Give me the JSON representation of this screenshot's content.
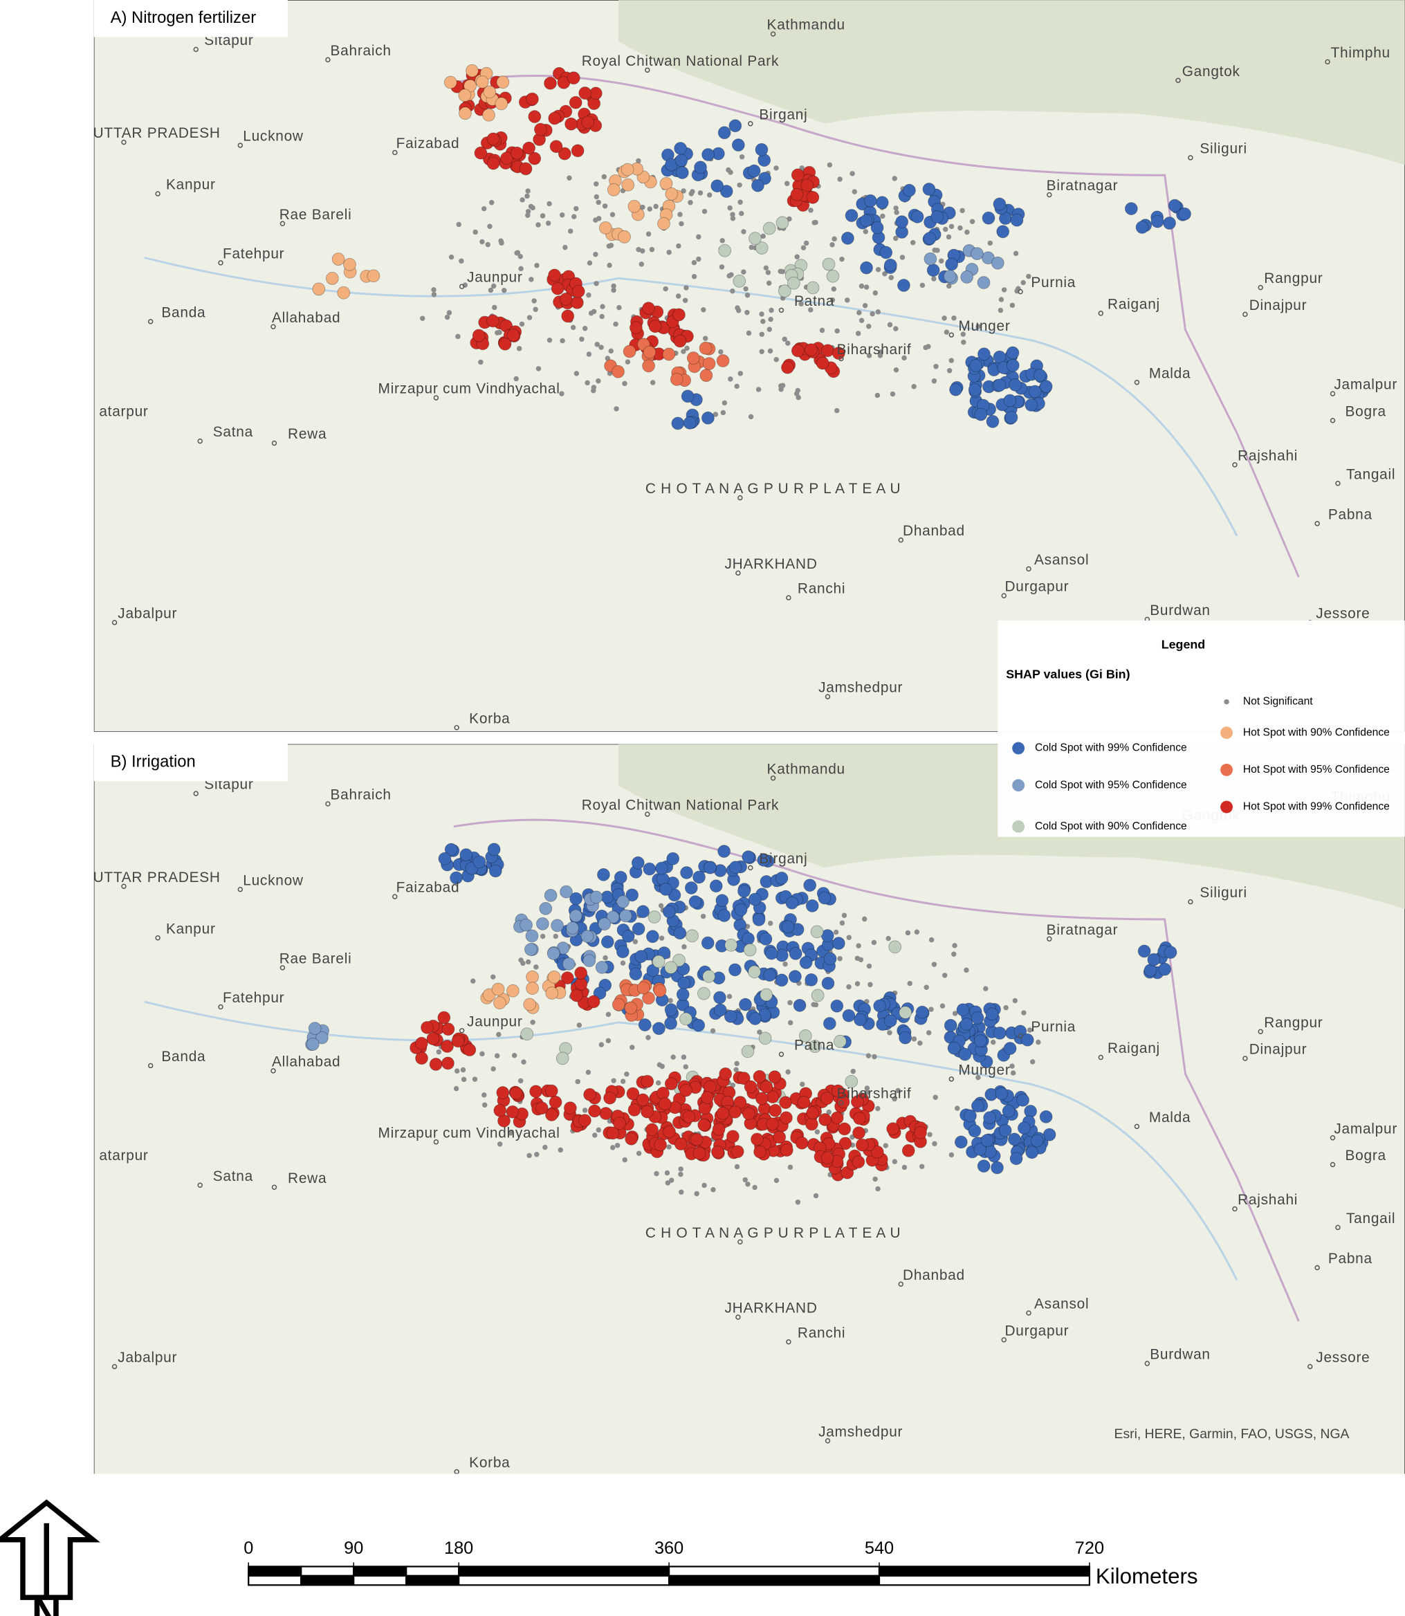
{
  "panels": [
    {
      "title": "A) Nitrogen fertilizer"
    },
    {
      "title": "B) Irrigation"
    }
  ],
  "places": [
    "Sitapur",
    "Bahraich",
    "Kathmandu",
    "Thimphu",
    "Gangtok",
    "UTTAR PRADESH",
    "Lucknow",
    "Faizabad",
    "Birganj",
    "Siliguri",
    "Kanpur",
    "Biratnagar",
    "Rae Bareli",
    "Fatehpur",
    "Jaunpur",
    "Purnia",
    "Rangpur",
    "Raiganj",
    "Dinajpur",
    "Banda",
    "Allahabad",
    "Patna",
    "Munger",
    "Biharsharif",
    "Mirzapur cum Vindhyachal",
    "Malda",
    "Jamalpur",
    "atarpur",
    "Bogra",
    "Satna",
    "Rewa",
    "Rajshahi",
    "Tangail",
    "C H O T A   N A G P U R   P L A T E A U",
    "Pabna",
    "Dhanbad",
    "JHARKHAND",
    "Asansol",
    "Ranchi",
    "Durgapur",
    "Jabalpur",
    "Burdwan",
    "Jessore",
    "Jamshedpur",
    "Korba",
    "Royal Chitwan National Park"
  ],
  "legend": {
    "title": "Legend",
    "subtitle": "SHAP values (Gi Bin)",
    "items": [
      {
        "label": "Cold Spot with 99% Confidence",
        "color": "#3a68b6"
      },
      {
        "label": "Cold Spot with 95% Confidence",
        "color": "#7d9cc6"
      },
      {
        "label": "Cold Spot with 90% Confidence",
        "color": "#bfcdbd"
      },
      {
        "label": "Not Significant",
        "color": "#8c8c8c"
      },
      {
        "label": "Hot Spot with 90% Confidence",
        "color": "#f4b07c"
      },
      {
        "label": "Hot Spot with 95% Confidence",
        "color": "#e8704e"
      },
      {
        "label": "Hot Spot with 99% Confidence",
        "color": "#d02a22"
      }
    ]
  },
  "attribution": "Esri, HERE, Garmin, FAO, USGS, NGA",
  "scale_bar": {
    "ticks": [
      0,
      90,
      180,
      360,
      540,
      720
    ],
    "unit": "Kilometers"
  },
  "north_label": "N"
}
